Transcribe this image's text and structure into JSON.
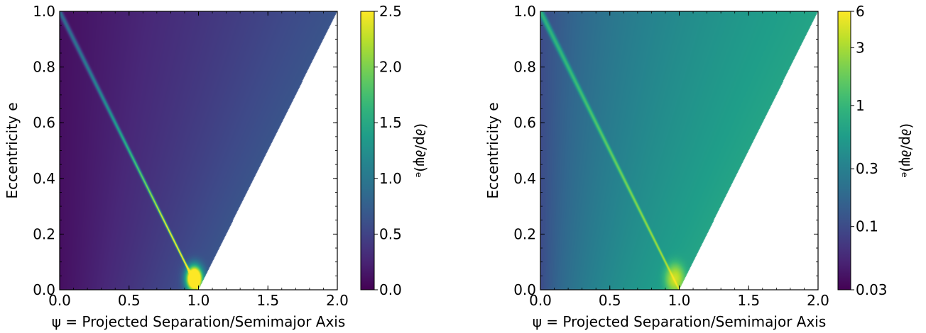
{
  "chart_data": [
    {
      "type": "heatmap",
      "xlabel": "ψ = Projected Separation/Semimajor Axis",
      "ylabel": "Eccentricity e",
      "xlim": [
        0.0,
        2.0
      ],
      "ylim": [
        0.0,
        1.0
      ],
      "xticks": [
        "0.0",
        "0.5",
        "1.0",
        "1.5",
        "2.0"
      ],
      "yticks": [
        "0.0",
        "0.2",
        "0.4",
        "0.6",
        "0.8",
        "1.0"
      ],
      "colorbar": {
        "label": "(∂p/∂ψ)ₑ",
        "scale": "linear",
        "range": [
          0.0,
          2.5
        ],
        "ticks": [
          "0.0",
          "0.5",
          "1.0",
          "1.5",
          "2.0",
          "2.5"
        ],
        "tick_values": [
          0.0,
          0.5,
          1.0,
          1.5,
          2.0,
          2.5
        ]
      },
      "colormap": "viridis"
    },
    {
      "type": "heatmap",
      "xlabel": "ψ = Projected Separation/Semimajor Axis",
      "ylabel": "Eccentricity e",
      "xlim": [
        0.0,
        2.0
      ],
      "ylim": [
        0.0,
        1.0
      ],
      "xticks": [
        "0.0",
        "0.5",
        "1.0",
        "1.5",
        "2.0"
      ],
      "yticks": [
        "0.0",
        "0.2",
        "0.4",
        "0.6",
        "0.8",
        "1.0"
      ],
      "colorbar": {
        "label": "(∂p/∂ψ)ₑ",
        "scale": "log",
        "range": [
          0.03,
          6
        ],
        "ticks": [
          "0.03",
          "0.1",
          "0.3",
          "1",
          "3",
          "6"
        ],
        "tick_values": [
          0.03,
          0.1,
          0.3,
          1,
          3,
          6
        ]
      },
      "colormap": "viridis"
    }
  ]
}
